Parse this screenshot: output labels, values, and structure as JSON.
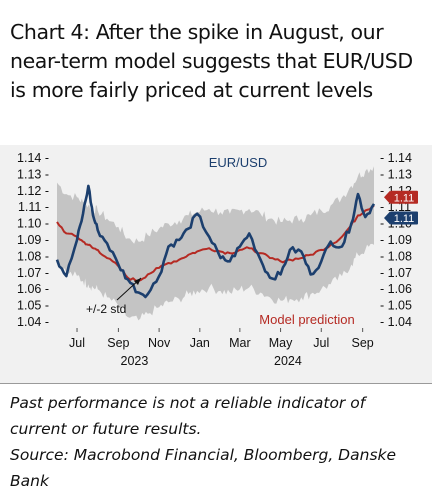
{
  "title": "Chart 4: After the spike in August, our near-term model suggests that EUR/USD is more fairly priced at current levels",
  "disclaimer": "Past performance is not a reliable indicator of current or future results.",
  "source": "Source: Macrobond Financial, Bloomberg, Danske Bank",
  "colors": {
    "eurusd": "#1c3f6e",
    "model": "#b52a23",
    "band": "#c4c4c4",
    "background": "#f1f1f1"
  },
  "chart_data": {
    "type": "line",
    "title": "",
    "xlabel": "",
    "ylabel": "",
    "ylim": [
      1.04,
      1.14
    ],
    "y_ticks": [
      "1.14",
      "1.13",
      "1.12",
      "1.11",
      "1.10",
      "1.09",
      "1.08",
      "1.07",
      "1.06",
      "1.05",
      "1.04"
    ],
    "x_ticks": [
      "Jul",
      "Sep",
      "Nov",
      "Jan",
      "Mar",
      "May",
      "Jul",
      "Sep"
    ],
    "x_years": [
      "2023",
      "2024"
    ],
    "x": [
      "2023-06-01",
      "2023-06-15",
      "2023-07-01",
      "2023-07-10",
      "2023-07-18",
      "2023-07-25",
      "2023-08-01",
      "2023-08-15",
      "2023-09-01",
      "2023-09-15",
      "2023-10-01",
      "2023-10-15",
      "2023-11-01",
      "2023-11-15",
      "2023-12-01",
      "2023-12-15",
      "2023-12-28",
      "2024-01-15",
      "2024-02-01",
      "2024-02-15",
      "2024-03-01",
      "2024-03-15",
      "2024-04-01",
      "2024-04-15",
      "2024-05-01",
      "2024-05-15",
      "2024-06-01",
      "2024-06-15",
      "2024-07-01",
      "2024-07-15",
      "2024-08-01",
      "2024-08-15",
      "2024-08-25",
      "2024-09-05",
      "2024-09-18"
    ],
    "series": [
      {
        "name": "EUR/USD",
        "values": [
          1.078,
          1.068,
          1.09,
          1.106,
          1.123,
          1.105,
          1.096,
          1.088,
          1.075,
          1.066,
          1.058,
          1.057,
          1.068,
          1.086,
          1.09,
          1.097,
          1.106,
          1.092,
          1.079,
          1.077,
          1.086,
          1.094,
          1.078,
          1.067,
          1.069,
          1.084,
          1.083,
          1.069,
          1.077,
          1.089,
          1.086,
          1.1,
          1.118,
          1.104,
          1.112
        ]
      },
      {
        "name": "Model prediction",
        "values": [
          1.101,
          1.094,
          1.092,
          1.089,
          1.087,
          1.085,
          1.084,
          1.079,
          1.074,
          1.067,
          1.065,
          1.069,
          1.073,
          1.076,
          1.078,
          1.081,
          1.083,
          1.085,
          1.083,
          1.082,
          1.084,
          1.085,
          1.082,
          1.079,
          1.077,
          1.078,
          1.079,
          1.081,
          1.084,
          1.087,
          1.092,
          1.099,
          1.105,
          1.108,
          1.111
        ]
      }
    ],
    "band": {
      "name": "+/-2 std",
      "width": 0.024
    },
    "annotations": {
      "series_label": "EUR/USD",
      "model_label": "Model prediction",
      "band_label": "+/-2 std"
    },
    "end_labels": {
      "model": "1.11",
      "eurusd": "1.11"
    }
  }
}
